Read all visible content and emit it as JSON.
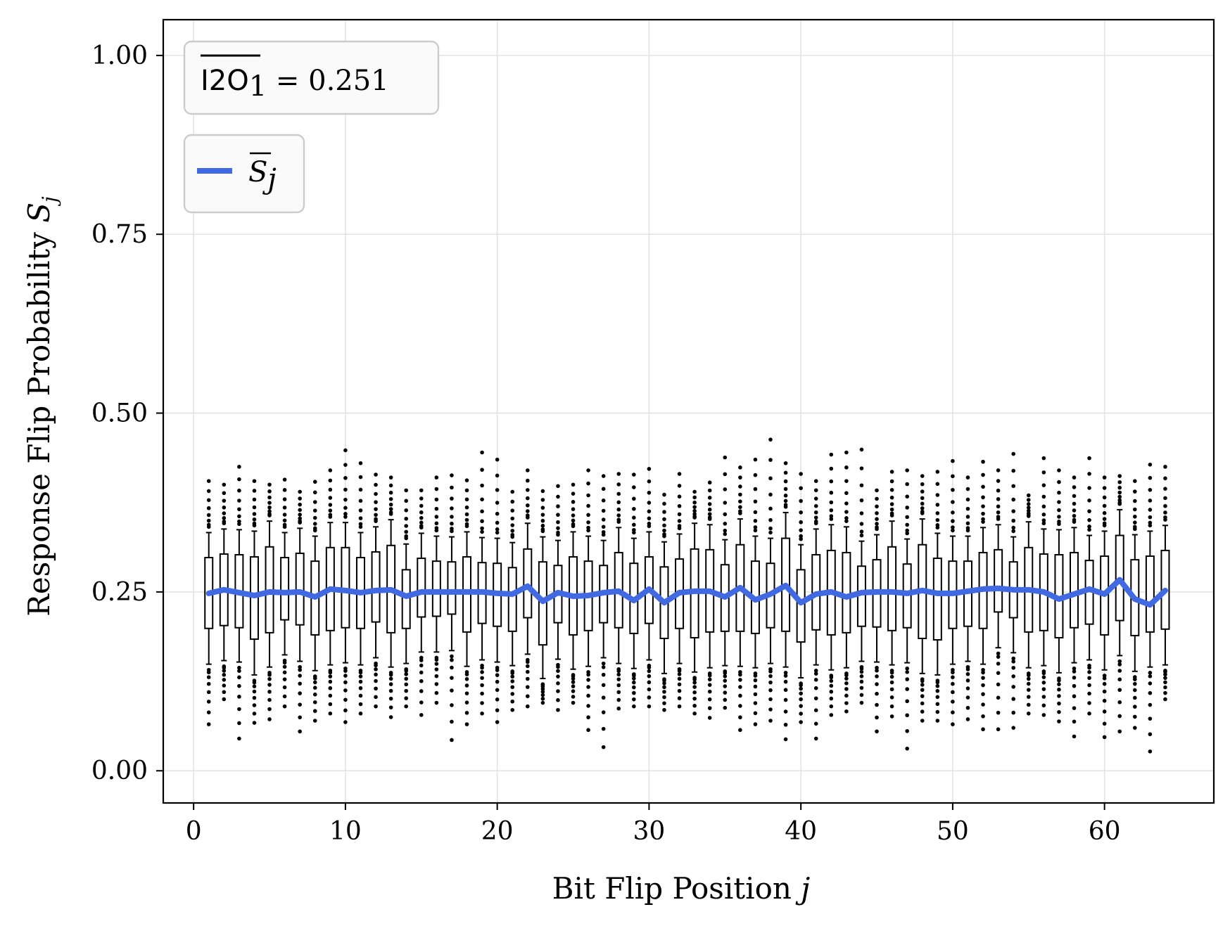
{
  "chart_data": {
    "type": "box",
    "xlabel_text": "Bit Flip Position ",
    "xlabel_var": "j",
    "ylabel_text": "Response Flip Probability ",
    "ylabel_var": "S",
    "ylabel_sub": "j",
    "xlim": [
      -2,
      67.2
    ],
    "ylim": [
      -0.045,
      1.05
    ],
    "x_ticks": [
      0,
      10,
      20,
      30,
      40,
      50,
      60
    ],
    "x_tick_labels": [
      "0",
      "10",
      "20",
      "30",
      "40",
      "50",
      "60"
    ],
    "y_ticks": [
      0.0,
      0.25,
      0.5,
      0.75,
      1.0
    ],
    "y_tick_labels": [
      "0.00",
      "0.25",
      "0.50",
      "0.75",
      "1.00"
    ],
    "grid": true,
    "stat_box": {
      "label": "I2O",
      "sub": "1",
      "value_text": " = 0.251"
    },
    "legend": {
      "placement": "upper-left",
      "entries": [
        {
          "name": "S",
          "sub": "j",
          "overline": true,
          "color": "#4169e1"
        }
      ]
    },
    "mean_color": "#4169e1",
    "box_color": "#000000",
    "positions": [
      1,
      2,
      3,
      4,
      5,
      6,
      7,
      8,
      9,
      10,
      11,
      12,
      13,
      14,
      15,
      16,
      17,
      18,
      19,
      20,
      21,
      22,
      23,
      24,
      25,
      26,
      27,
      28,
      29,
      30,
      31,
      32,
      33,
      34,
      35,
      36,
      37,
      38,
      39,
      40,
      41,
      42,
      43,
      44,
      45,
      46,
      47,
      48,
      49,
      50,
      51,
      52,
      53,
      54,
      55,
      56,
      57,
      58,
      59,
      60,
      61,
      62,
      63,
      64
    ],
    "mean": [
      0.248,
      0.253,
      0.249,
      0.245,
      0.25,
      0.249,
      0.25,
      0.243,
      0.254,
      0.252,
      0.249,
      0.252,
      0.253,
      0.244,
      0.25,
      0.25,
      0.25,
      0.25,
      0.25,
      0.248,
      0.247,
      0.258,
      0.237,
      0.249,
      0.244,
      0.245,
      0.249,
      0.251,
      0.238,
      0.254,
      0.235,
      0.249,
      0.251,
      0.251,
      0.243,
      0.256,
      0.239,
      0.247,
      0.259,
      0.235,
      0.247,
      0.25,
      0.243,
      0.249,
      0.25,
      0.25,
      0.248,
      0.252,
      0.248,
      0.248,
      0.251,
      0.254,
      0.255,
      0.253,
      0.253,
      0.25,
      0.24,
      0.247,
      0.254,
      0.247,
      0.267,
      0.24,
      0.232,
      0.252
    ],
    "q1": [
      0.199,
      0.203,
      0.2,
      0.184,
      0.193,
      0.211,
      0.204,
      0.19,
      0.196,
      0.2,
      0.199,
      0.208,
      0.193,
      0.199,
      0.215,
      0.216,
      0.219,
      0.194,
      0.206,
      0.202,
      0.195,
      0.214,
      0.176,
      0.207,
      0.19,
      0.196,
      0.207,
      0.2,
      0.192,
      0.206,
      0.185,
      0.199,
      0.186,
      0.194,
      0.195,
      0.195,
      0.192,
      0.2,
      0.195,
      0.18,
      0.197,
      0.19,
      0.193,
      0.202,
      0.201,
      0.196,
      0.2,
      0.185,
      0.183,
      0.199,
      0.202,
      0.199,
      0.222,
      0.214,
      0.194,
      0.196,
      0.186,
      0.2,
      0.205,
      0.19,
      0.21,
      0.189,
      0.194,
      0.198
    ],
    "q3": [
      0.298,
      0.303,
      0.302,
      0.299,
      0.313,
      0.298,
      0.304,
      0.293,
      0.312,
      0.312,
      0.298,
      0.306,
      0.315,
      0.281,
      0.297,
      0.293,
      0.292,
      0.299,
      0.291,
      0.29,
      0.284,
      0.31,
      0.292,
      0.287,
      0.299,
      0.293,
      0.287,
      0.305,
      0.29,
      0.299,
      0.285,
      0.296,
      0.31,
      0.309,
      0.288,
      0.316,
      0.293,
      0.29,
      0.325,
      0.281,
      0.302,
      0.308,
      0.305,
      0.286,
      0.295,
      0.313,
      0.289,
      0.316,
      0.297,
      0.293,
      0.293,
      0.305,
      0.309,
      0.292,
      0.312,
      0.303,
      0.302,
      0.305,
      0.294,
      0.3,
      0.329,
      0.295,
      0.3,
      0.308
    ],
    "whisker_low": [
      0.149,
      0.154,
      0.152,
      0.134,
      0.145,
      0.162,
      0.153,
      0.14,
      0.148,
      0.151,
      0.148,
      0.158,
      0.145,
      0.15,
      0.166,
      0.166,
      0.168,
      0.146,
      0.155,
      0.152,
      0.147,
      0.163,
      0.129,
      0.156,
      0.142,
      0.146,
      0.158,
      0.15,
      0.143,
      0.155,
      0.136,
      0.15,
      0.138,
      0.144,
      0.147,
      0.146,
      0.144,
      0.15,
      0.145,
      0.13,
      0.148,
      0.141,
      0.144,
      0.153,
      0.152,
      0.148,
      0.151,
      0.136,
      0.134,
      0.149,
      0.153,
      0.149,
      0.172,
      0.165,
      0.144,
      0.147,
      0.137,
      0.151,
      0.155,
      0.141,
      0.161,
      0.139,
      0.145,
      0.148
    ],
    "whisker_high": [
      0.333,
      0.338,
      0.337,
      0.335,
      0.349,
      0.333,
      0.339,
      0.328,
      0.347,
      0.347,
      0.333,
      0.341,
      0.351,
      0.317,
      0.332,
      0.328,
      0.327,
      0.334,
      0.326,
      0.325,
      0.319,
      0.346,
      0.327,
      0.322,
      0.334,
      0.328,
      0.322,
      0.34,
      0.325,
      0.334,
      0.32,
      0.331,
      0.346,
      0.344,
      0.323,
      0.352,
      0.328,
      0.325,
      0.361,
      0.316,
      0.338,
      0.344,
      0.341,
      0.321,
      0.33,
      0.349,
      0.324,
      0.352,
      0.332,
      0.328,
      0.328,
      0.34,
      0.344,
      0.327,
      0.348,
      0.338,
      0.337,
      0.34,
      0.329,
      0.335,
      0.365,
      0.33,
      0.335,
      0.343
    ],
    "outlier_min": [
      0.065,
      0.1,
      0.045,
      0.067,
      0.072,
      0.09,
      0.055,
      0.07,
      0.08,
      0.068,
      0.08,
      0.09,
      0.075,
      0.09,
      0.078,
      0.095,
      0.043,
      0.065,
      0.08,
      0.068,
      0.085,
      0.09,
      0.095,
      0.085,
      0.095,
      0.057,
      0.033,
      0.087,
      0.09,
      0.09,
      0.085,
      0.09,
      0.08,
      0.074,
      0.088,
      0.057,
      0.065,
      0.07,
      0.044,
      0.068,
      0.045,
      0.078,
      0.083,
      0.095,
      0.055,
      0.076,
      0.031,
      0.07,
      0.07,
      0.065,
      0.072,
      0.058,
      0.058,
      0.06,
      0.08,
      0.078,
      0.069,
      0.048,
      0.08,
      0.047,
      0.055,
      0.06,
      0.027,
      0.1
    ],
    "outlier_max": [
      0.405,
      0.4,
      0.425,
      0.405,
      0.4,
      0.407,
      0.39,
      0.404,
      0.42,
      0.448,
      0.43,
      0.414,
      0.41,
      0.392,
      0.392,
      0.41,
      0.413,
      0.406,
      0.445,
      0.435,
      0.39,
      0.42,
      0.391,
      0.398,
      0.4,
      0.42,
      0.412,
      0.415,
      0.414,
      0.422,
      0.386,
      0.415,
      0.39,
      0.403,
      0.438,
      0.424,
      0.435,
      0.463,
      0.43,
      0.415,
      0.405,
      0.442,
      0.445,
      0.449,
      0.392,
      0.418,
      0.42,
      0.412,
      0.418,
      0.433,
      0.41,
      0.432,
      0.42,
      0.443,
      0.385,
      0.437,
      0.42,
      0.41,
      0.437,
      0.41,
      0.412,
      0.405,
      0.428,
      0.425
    ]
  }
}
